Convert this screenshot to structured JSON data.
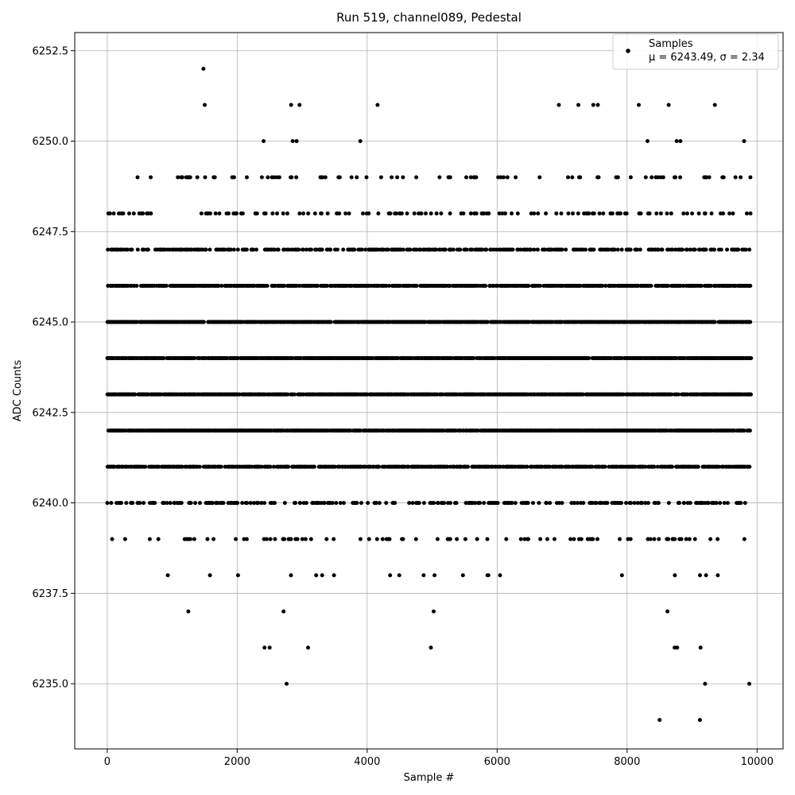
{
  "chart_data": {
    "type": "scatter",
    "title": "Run 519, channel089, Pedestal",
    "xlabel": "Sample #",
    "ylabel": "ADC Counts",
    "xlim": [
      -500,
      10400
    ],
    "ylim": [
      6233.2,
      6253.0
    ],
    "x_ticks": [
      0,
      2000,
      4000,
      6000,
      8000,
      10000
    ],
    "x_tick_labels": [
      "0",
      "2000",
      "4000",
      "6000",
      "8000",
      "10000"
    ],
    "y_ticks": [
      6235.0,
      6237.5,
      6240.0,
      6242.5,
      6245.0,
      6247.5,
      6250.0,
      6252.5
    ],
    "y_tick_labels": [
      "6235.0",
      "6237.5",
      "6240.0",
      "6242.5",
      "6245.0",
      "6247.5",
      "6250.0",
      "6252.5"
    ],
    "grid": true,
    "legend_position": "top-right",
    "colors": {
      "points": "#000000",
      "grid": "#b0b0b0"
    },
    "series": [
      {
        "name": "Samples",
        "legend_stats": "μ = 6243.49, σ = 2.34",
        "description": "about 9900 samples at integer ADC values 6234-6252; dense bands 6240-6247",
        "levels": [
          6234,
          6235,
          6236,
          6237,
          6238,
          6239,
          6240,
          6241,
          6242,
          6243,
          6244,
          6245,
          6246,
          6247,
          6248,
          6249,
          6250,
          6251,
          6252
        ],
        "outliers": [
          {
            "x": 1480,
            "y": 6252
          },
          {
            "x": 2760,
            "y": 6235
          },
          {
            "x": 9200,
            "y": 6235
          },
          {
            "x": 9880,
            "y": 6235
          },
          {
            "x": 8500,
            "y": 6234
          },
          {
            "x": 9120,
            "y": 6234
          },
          {
            "x": 2420,
            "y": 6236
          },
          {
            "x": 2500,
            "y": 6236
          },
          {
            "x": 3090,
            "y": 6236
          },
          {
            "x": 4980,
            "y": 6236
          },
          {
            "x": 8730,
            "y": 6236
          },
          {
            "x": 8770,
            "y": 6236
          },
          {
            "x": 9130,
            "y": 6236
          },
          {
            "x": 1500,
            "y": 6251
          },
          {
            "x": 2830,
            "y": 6251
          },
          {
            "x": 2960,
            "y": 6251
          },
          {
            "x": 4160,
            "y": 6251
          },
          {
            "x": 6950,
            "y": 6251
          },
          {
            "x": 7250,
            "y": 6251
          },
          {
            "x": 7480,
            "y": 6251
          },
          {
            "x": 7550,
            "y": 6251
          },
          {
            "x": 8180,
            "y": 6251
          },
          {
            "x": 8640,
            "y": 6251
          },
          {
            "x": 9350,
            "y": 6251
          }
        ]
      }
    ]
  }
}
